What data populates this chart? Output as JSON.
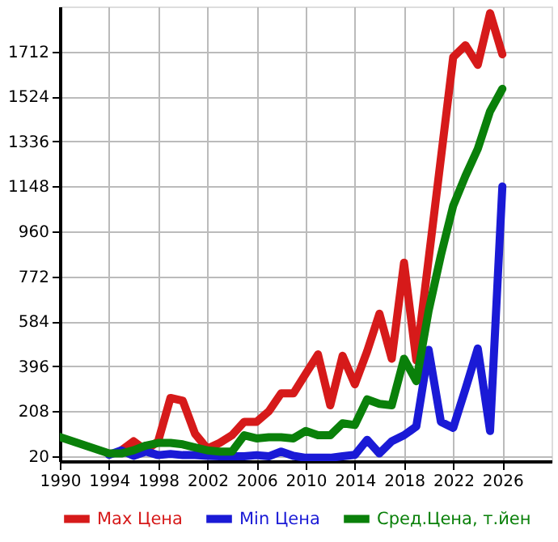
{
  "chart_data": {
    "type": "line",
    "xlim": [
      1990,
      2030
    ],
    "xticks": [
      1990,
      1994,
      1998,
      2002,
      2006,
      2010,
      2014,
      2018,
      2022,
      2026
    ],
    "ylim": [
      0,
      1900
    ],
    "yticks": [
      20,
      208,
      396,
      584,
      772,
      960,
      1148,
      1336,
      1524,
      1712
    ],
    "grid": true,
    "legend": "bottom",
    "line_style": "solid",
    "marker": "none",
    "series": [
      {
        "name": "Max Цена",
        "color": "#d61a1a",
        "x": [
          1995,
          1996,
          1997,
          1998,
          1999,
          2000,
          2001,
          2002,
          2003,
          2004,
          2005,
          2006,
          2007,
          2008,
          2009,
          2010,
          2011,
          2012,
          2013,
          2014,
          2015,
          2016,
          2017,
          2018,
          2019,
          2022,
          2023,
          2024,
          2025,
          2026
        ],
        "values": [
          45,
          83,
          45,
          83,
          264,
          252,
          114,
          52,
          76,
          108,
          164,
          164,
          208,
          283,
          283,
          365,
          446,
          233,
          440,
          321,
          459,
          616,
          428,
          829,
          421,
          1688,
          1738,
          1656,
          1872,
          1700
        ]
      },
      {
        "name": "Min Цена",
        "color": "#1a1ad6",
        "x": [
          1994,
          1995,
          1996,
          1997,
          1998,
          1999,
          2000,
          2001,
          2002,
          2003,
          2004,
          2005,
          2006,
          2007,
          2008,
          2009,
          2010,
          2011,
          2012,
          2013,
          2014,
          2015,
          2016,
          2017,
          2018,
          2019,
          2020,
          2021,
          2022,
          2023,
          2024,
          2025,
          2026
        ],
        "values": [
          26,
          45,
          22,
          40,
          25,
          30,
          25,
          25,
          22,
          20,
          20,
          20,
          25,
          20,
          40,
          22,
          14,
          14,
          14,
          20,
          26,
          89,
          32,
          83,
          108,
          145,
          465,
          164,
          139,
          302,
          471,
          126,
          1148
        ]
      },
      {
        "name": "Сред.Цена, т.йен",
        "color": "#0a800a",
        "x": [
          1990,
          1994,
          1995,
          1996,
          1997,
          1998,
          1999,
          2000,
          2001,
          2002,
          2003,
          2004,
          2005,
          2006,
          2007,
          2008,
          2009,
          2010,
          2011,
          2012,
          2013,
          2014,
          2015,
          2016,
          2017,
          2018,
          2019,
          2020,
          2021,
          2022,
          2023,
          2024,
          2025,
          2026
        ],
        "values": [
          101,
          32,
          32,
          45,
          65,
          76,
          76,
          70,
          57,
          45,
          40,
          40,
          108,
          95,
          100,
          100,
          95,
          126,
          108,
          108,
          158,
          151,
          258,
          239,
          233,
          428,
          334,
          628,
          860,
          1067,
          1192,
          1305,
          1462,
          1556
        ]
      }
    ]
  }
}
